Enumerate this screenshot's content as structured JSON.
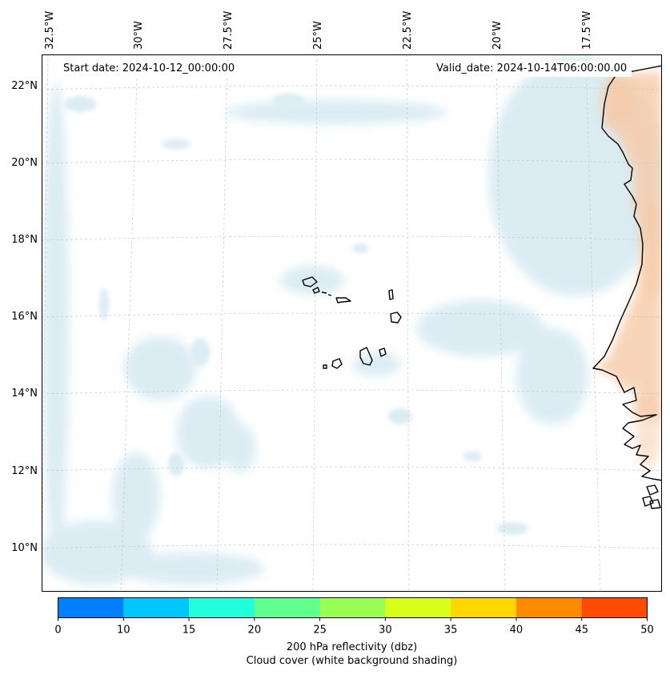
{
  "map": {
    "start_date_label": "Start date: 2024-10-12_00:00:00",
    "valid_date_label": "Valid_date: 2024-10-14T06:00:00.00",
    "longitude_labels": [
      "32.5°W",
      "30°W",
      "27.5°W",
      "25°W",
      "22.5°W",
      "20°W",
      "17.5°W"
    ],
    "latitude_labels": [
      "22°N",
      "20°N",
      "18°N",
      "16°N",
      "14°N",
      "12°N",
      "10°N"
    ]
  },
  "colorbar": {
    "ticks": [
      "0",
      "10",
      "15",
      "20",
      "25",
      "30",
      "35",
      "40",
      "45",
      "50"
    ],
    "colors": [
      "#0080ff",
      "#00c8ff",
      "#22ffdd",
      "#5fff90",
      "#9aff55",
      "#d8ff1a",
      "#ffd700",
      "#ff8c00",
      "#ff4a00"
    ],
    "label": "200 hPa reflectivity (dbz)",
    "sublabel": "Cloud cover (white background shading)"
  },
  "colors": {
    "cloud": "#cfe6ef",
    "warm_land": "#f7c9a6",
    "coastline": "#000000",
    "gridline": "#c8c8c8"
  }
}
